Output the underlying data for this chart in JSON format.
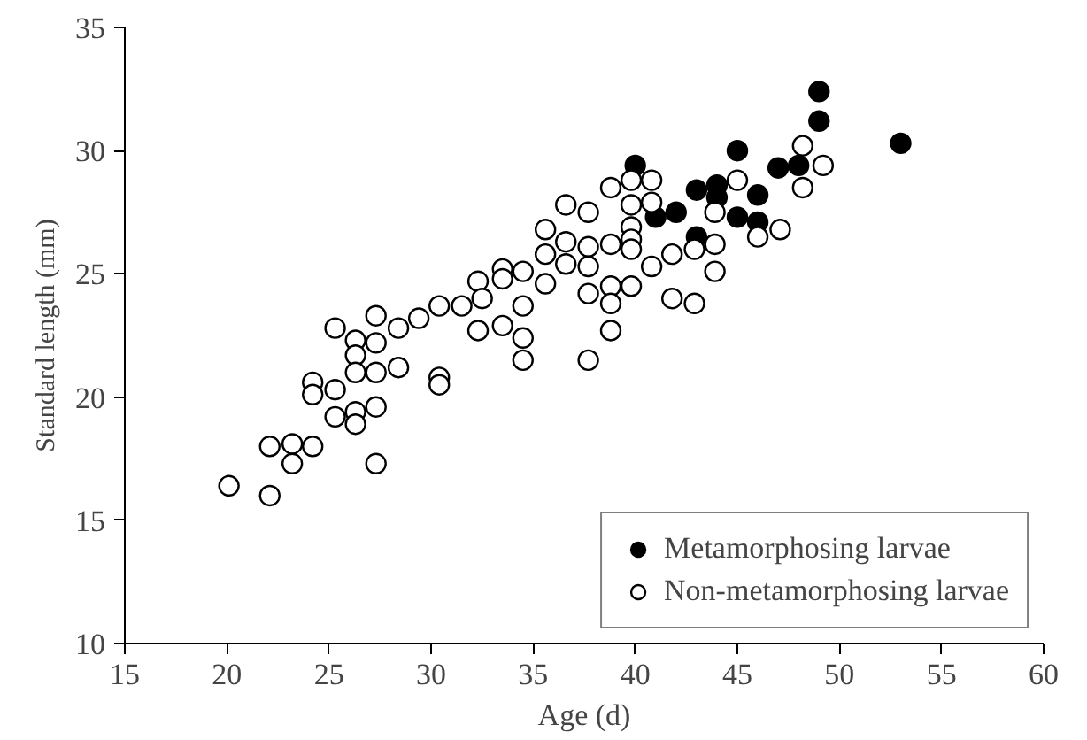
{
  "chart_data": {
    "type": "scatter",
    "xlabel": "Age (d)",
    "ylabel": "Standard length (mm)",
    "xlim": [
      15,
      60
    ],
    "xticks": [
      15,
      20,
      25,
      30,
      35,
      40,
      45,
      50,
      55,
      60
    ],
    "ylim": [
      10,
      35
    ],
    "yticks": [
      10,
      15,
      20,
      25,
      30,
      35
    ],
    "grid": false,
    "legend": "bottom right",
    "marker": "circle",
    "series": [
      {
        "name": "Metamorphosing larvae",
        "color": "#000000",
        "x": [
          40,
          45,
          43,
          44,
          44,
          46,
          41,
          42,
          45,
          46,
          43,
          49,
          49,
          53,
          47,
          48
        ],
        "values": [
          29.4,
          30.0,
          28.4,
          28.6,
          28.1,
          28.2,
          27.3,
          27.5,
          27.3,
          27.1,
          26.5,
          32.4,
          31.2,
          30.3,
          29.3,
          29.4
        ]
      },
      {
        "name": "Non-metamorphosing larvae",
        "color": "#ffffff",
        "x": [
          20.1,
          22.1,
          22.1,
          23.2,
          23.2,
          24.2,
          25.3,
          26.3,
          26.3,
          27.3,
          27.3,
          24.2,
          24.2,
          25.3,
          25.3,
          26.3,
          26.3,
          26.3,
          27.3,
          27.3,
          27.3,
          28.4,
          28.4,
          29.4,
          30.4,
          31.5,
          30.4,
          30.4,
          32.3,
          32.3,
          32.5,
          33.5,
          33.5,
          33.5,
          34.5,
          34.5,
          34.5,
          34.5,
          35.6,
          35.6,
          35.6,
          36.6,
          36.6,
          36.6,
          37.7,
          37.7,
          37.7,
          37.7,
          37.7,
          38.8,
          38.8,
          38.8,
          38.8,
          38.8,
          39.8,
          39.8,
          39.8,
          39.8,
          39.8,
          39.8,
          40.8,
          40.8,
          40.8,
          41.8,
          41.8,
          42.9,
          42.9,
          43.9,
          43.9,
          43.9,
          45,
          46,
          48.2,
          49.2,
          48.2,
          47.1
        ],
        "values": [
          16.4,
          16.0,
          18.0,
          18.1,
          17.3,
          18.0,
          19.2,
          19.4,
          18.9,
          19.6,
          17.3,
          20.6,
          20.1,
          20.3,
          22.8,
          22.3,
          21.7,
          21.0,
          23.3,
          22.2,
          21.0,
          22.8,
          21.2,
          23.2,
          23.7,
          23.7,
          20.8,
          20.5,
          24.7,
          22.7,
          24.0,
          25.2,
          24.8,
          22.9,
          25.1,
          23.7,
          22.4,
          21.5,
          26.8,
          25.8,
          24.6,
          27.8,
          26.3,
          25.4,
          27.5,
          26.1,
          25.3,
          24.2,
          21.5,
          28.5,
          26.2,
          24.5,
          23.8,
          22.7,
          28.8,
          27.8,
          26.9,
          26.4,
          26.0,
          24.5,
          28.8,
          27.9,
          25.3,
          25.8,
          24.0,
          26.0,
          23.8,
          27.5,
          26.2,
          25.1,
          28.8,
          26.5,
          30.2,
          29.4,
          28.5,
          26.8
        ]
      }
    ]
  }
}
